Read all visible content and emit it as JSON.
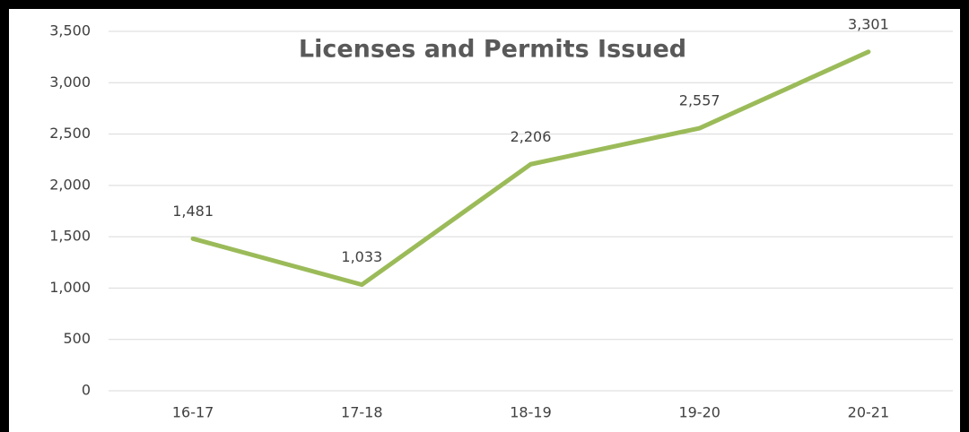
{
  "chart_data": {
    "type": "line",
    "title": "Licenses and Permits Issued",
    "categories": [
      "16-17",
      "17-18",
      "18-19",
      "19-20",
      "20-21"
    ],
    "series": [
      {
        "name": "Licenses and Permits Issued",
        "color": "#9bbb59",
        "values": [
          1481,
          1033,
          2206,
          2557,
          3301
        ],
        "value_labels": [
          "1,481",
          "1,033",
          "2,206",
          "2,557",
          "3,301"
        ]
      }
    ],
    "ylim": [
      0,
      3500
    ],
    "yticks": [
      0,
      500,
      {
        "value": 1000,
        "label": "1,000"
      },
      {
        "value": 1500,
        "label": "1,500"
      },
      {
        "value": 2000,
        "label": "2,000"
      },
      {
        "value": 2500,
        "label": "2,500"
      },
      {
        "value": 3000,
        "label": "3,000"
      },
      {
        "value": 3500,
        "label": "3,500"
      }
    ],
    "grid": true
  }
}
